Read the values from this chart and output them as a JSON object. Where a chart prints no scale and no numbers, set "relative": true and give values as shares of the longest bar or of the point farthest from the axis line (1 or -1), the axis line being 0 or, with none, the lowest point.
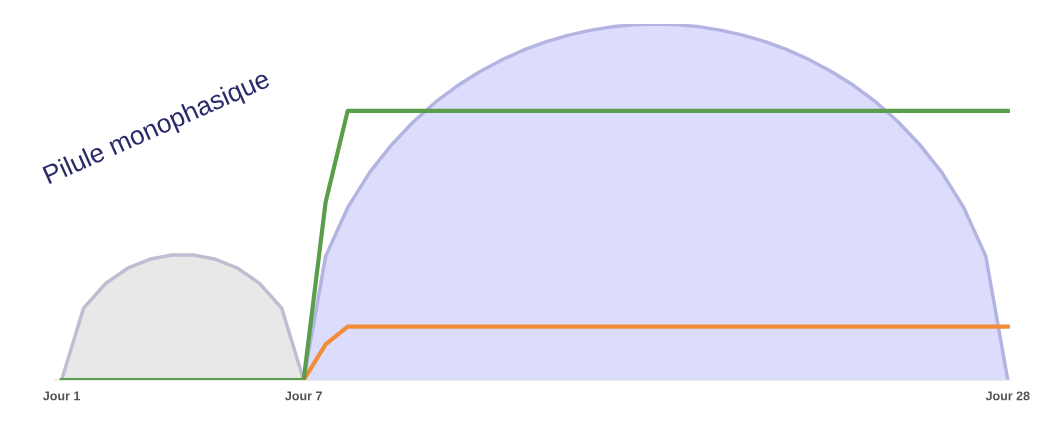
{
  "chart_data": {
    "type": "line",
    "relative": true,
    "tick_labels": "x",
    "grid": false,
    "legend": false,
    "categories": [
      "Jour 1",
      null,
      null,
      null,
      null,
      null,
      null,
      null,
      null,
      null,
      null,
      "Jour 7",
      null,
      null,
      null,
      null,
      null,
      null,
      null,
      null,
      null,
      null,
      null,
      null,
      null,
      null,
      null,
      null,
      null,
      null,
      null,
      null,
      null,
      null,
      null,
      null,
      null,
      null,
      null,
      null,
      null,
      null,
      null,
      "Jour 28"
    ],
    "annotations": [
      "Pilule monophasique"
    ],
    "series": [
      {
        "type": "area",
        "color": "#e8e8e8",
        "values": [
          0,
          0.202,
          0.271,
          0.314,
          0.339,
          0.351,
          0.351,
          0.339,
          0.314,
          0.271,
          0.202,
          0,
          null,
          null,
          null,
          null,
          null,
          null,
          null,
          null,
          null,
          null,
          null,
          null,
          null,
          null,
          null,
          null,
          null,
          null,
          null,
          null,
          null,
          null,
          null,
          null,
          null,
          null,
          null,
          null,
          null,
          null,
          null,
          null
        ]
      },
      {
        "type": "area",
        "color": "#dcdcfc",
        "values": [
          null,
          null,
          null,
          null,
          null,
          null,
          null,
          null,
          null,
          null,
          null,
          0,
          0.348,
          0.484,
          0.583,
          0.661,
          0.726,
          0.781,
          0.827,
          0.866,
          0.899,
          0.927,
          0.95,
          0.968,
          0.982,
          0.992,
          0.998,
          1,
          0.998,
          0.992,
          0.982,
          0.968,
          0.95,
          0.927,
          0.899,
          0.866,
          0.827,
          0.781,
          0.726,
          0.661,
          0.583,
          0.484,
          0.348,
          0
        ]
      },
      {
        "color": "#f28c38",
        "values": [
          null,
          null,
          null,
          null,
          null,
          null,
          null,
          null,
          null,
          null,
          null,
          0,
          0.1,
          0.15,
          0.15,
          0.15,
          0.15,
          0.15,
          0.15,
          0.15,
          0.15,
          0.15,
          0.15,
          0.15,
          0.15,
          0.15,
          0.15,
          0.15,
          0.15,
          0.15,
          0.15,
          0.15,
          0.15,
          0.15,
          0.15,
          0.15,
          0.15,
          0.15,
          0.15,
          0.15,
          0.15,
          0.15,
          0.15,
          0.15
        ]
      },
      {
        "color": "#5a9e4b",
        "values": [
          0,
          0,
          0,
          0,
          0,
          0,
          0,
          0,
          0,
          0,
          0,
          0,
          0.5,
          0.756,
          0.756,
          0.756,
          0.756,
          0.756,
          0.756,
          0.756,
          0.756,
          0.756,
          0.756,
          0.756,
          0.756,
          0.756,
          0.756,
          0.756,
          0.756,
          0.756,
          0.756,
          0.756,
          0.756,
          0.756,
          0.756,
          0.756,
          0.756,
          0.756,
          0.756,
          0.756,
          0.756,
          0.756,
          0.756,
          0.756
        ]
      }
    ]
  }
}
